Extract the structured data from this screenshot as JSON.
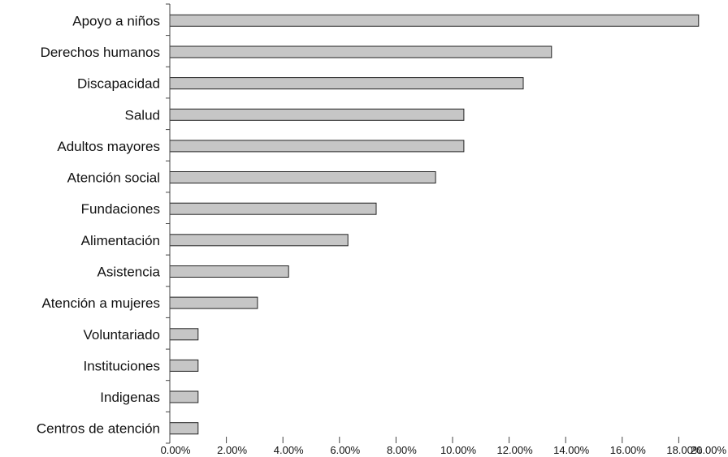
{
  "chart_data": {
    "type": "bar",
    "orientation": "horizontal",
    "categories": [
      "Apoyo a niños",
      "Derechos humanos",
      "Discapacidad",
      "Salud",
      "Adultos mayores",
      "Atención social",
      "Fundaciones",
      "Alimentación",
      "Asistencia",
      "Atención a mujeres",
      "Voluntariado",
      "Instituciones",
      "Indigenas",
      "Centros de atención"
    ],
    "values": [
      18.7,
      13.5,
      12.5,
      10.4,
      10.4,
      9.4,
      7.3,
      6.3,
      4.2,
      3.1,
      1.0,
      1.0,
      1.0,
      1.0
    ],
    "x_ticks": [
      "0.00%",
      "2.00%",
      "4.00%",
      "6.00%",
      "8.00%",
      "10.00%",
      "12.00%",
      "14.00%",
      "16.00%",
      "18.00%",
      "20.00%"
    ],
    "xlim": [
      0,
      20
    ],
    "title": "",
    "xlabel": "",
    "ylabel": "",
    "grid": false,
    "bar_color": "#c6c6c6",
    "bar_edge_color": "#222222"
  }
}
